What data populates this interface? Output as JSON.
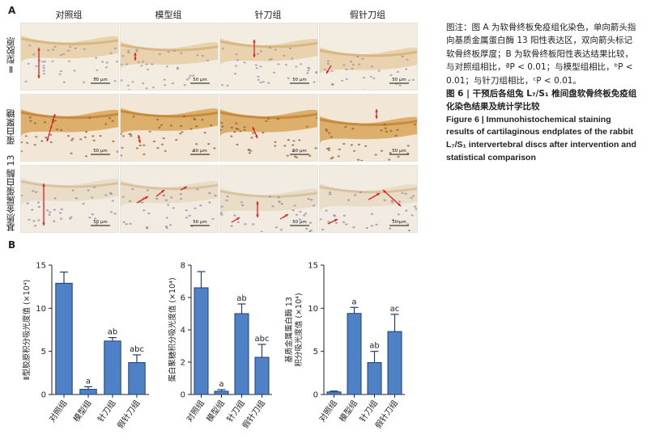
{
  "panel_a_label": "A",
  "panel_b_label": "B",
  "columns": [
    "对照组",
    "模型组",
    "针刀组",
    "假针刀组"
  ],
  "rows": [
    "Ⅱ型胶原",
    "蛋白聚糖",
    "基质金属蛋白酶 13"
  ],
  "scale_label": "50 μm",
  "caption": {
    "note": "图注：图 A 为软骨终板免疫组化染色，单向箭头指向基质金属蛋白酶 13 阳性表达区，双向箭头标记软骨终板厚度；B 为软骨终板阳性表达结果比较，与对照组相比，ªP < 0.01；与模型组相比，ᵇP < 0.01；与针刀组相比，ᶜP < 0.01。",
    "title_cn": "图 6  |  干预后各组兔 L₇/S₁ 椎间盘软骨终板免疫组化染色结果及统计学比较",
    "title_en": "Figure 6  |  Immunohistochemical staining results of cartilaginous endplates of the rabbit L₇/S₁ intervertebral discs after intervention and statistical comparison"
  },
  "colors": {
    "bar": "#4f81c6",
    "bar_edge": "#1f3f73",
    "arrow": "#e02020"
  },
  "chart_data": [
    {
      "type": "bar",
      "ylabel": "Ⅱ型胶原积分吸光度值 (×10⁴)",
      "categories": [
        "对照组",
        "模型组",
        "针刀组",
        "假针刀组"
      ],
      "values": [
        12.9,
        0.6,
        6.2,
        3.7
      ],
      "errors": [
        1.3,
        0.3,
        0.4,
        0.9
      ],
      "annotations": [
        "",
        "a",
        "ab",
        "abc"
      ],
      "ylim": [
        0,
        15
      ],
      "yticks": [
        0,
        5,
        10,
        15
      ]
    },
    {
      "type": "bar",
      "ylabel": "蛋白聚糖积分吸光度值 (×10⁴)",
      "categories": [
        "对照组",
        "模型组",
        "针刀组",
        "假针刀组"
      ],
      "values": [
        6.6,
        0.2,
        5.0,
        2.3
      ],
      "errors": [
        1.0,
        0.1,
        0.6,
        0.8
      ],
      "annotations": [
        "",
        "a",
        "ab",
        "abc"
      ],
      "ylim": [
        0,
        8
      ],
      "yticks": [
        0,
        2,
        4,
        6,
        8
      ]
    },
    {
      "type": "bar",
      "ylabel": "基质金属蛋白酶 13\n积分吸光度值 (×10⁴)",
      "categories": [
        "对照组",
        "模型组",
        "针刀组",
        "假针刀组"
      ],
      "values": [
        0.3,
        9.4,
        3.7,
        7.3
      ],
      "errors": [
        0.1,
        0.7,
        1.3,
        2.0
      ],
      "annotations": [
        "",
        "a",
        "ab",
        "ac"
      ],
      "ylim": [
        0,
        15
      ],
      "yticks": [
        0,
        5,
        10,
        15
      ]
    }
  ]
}
